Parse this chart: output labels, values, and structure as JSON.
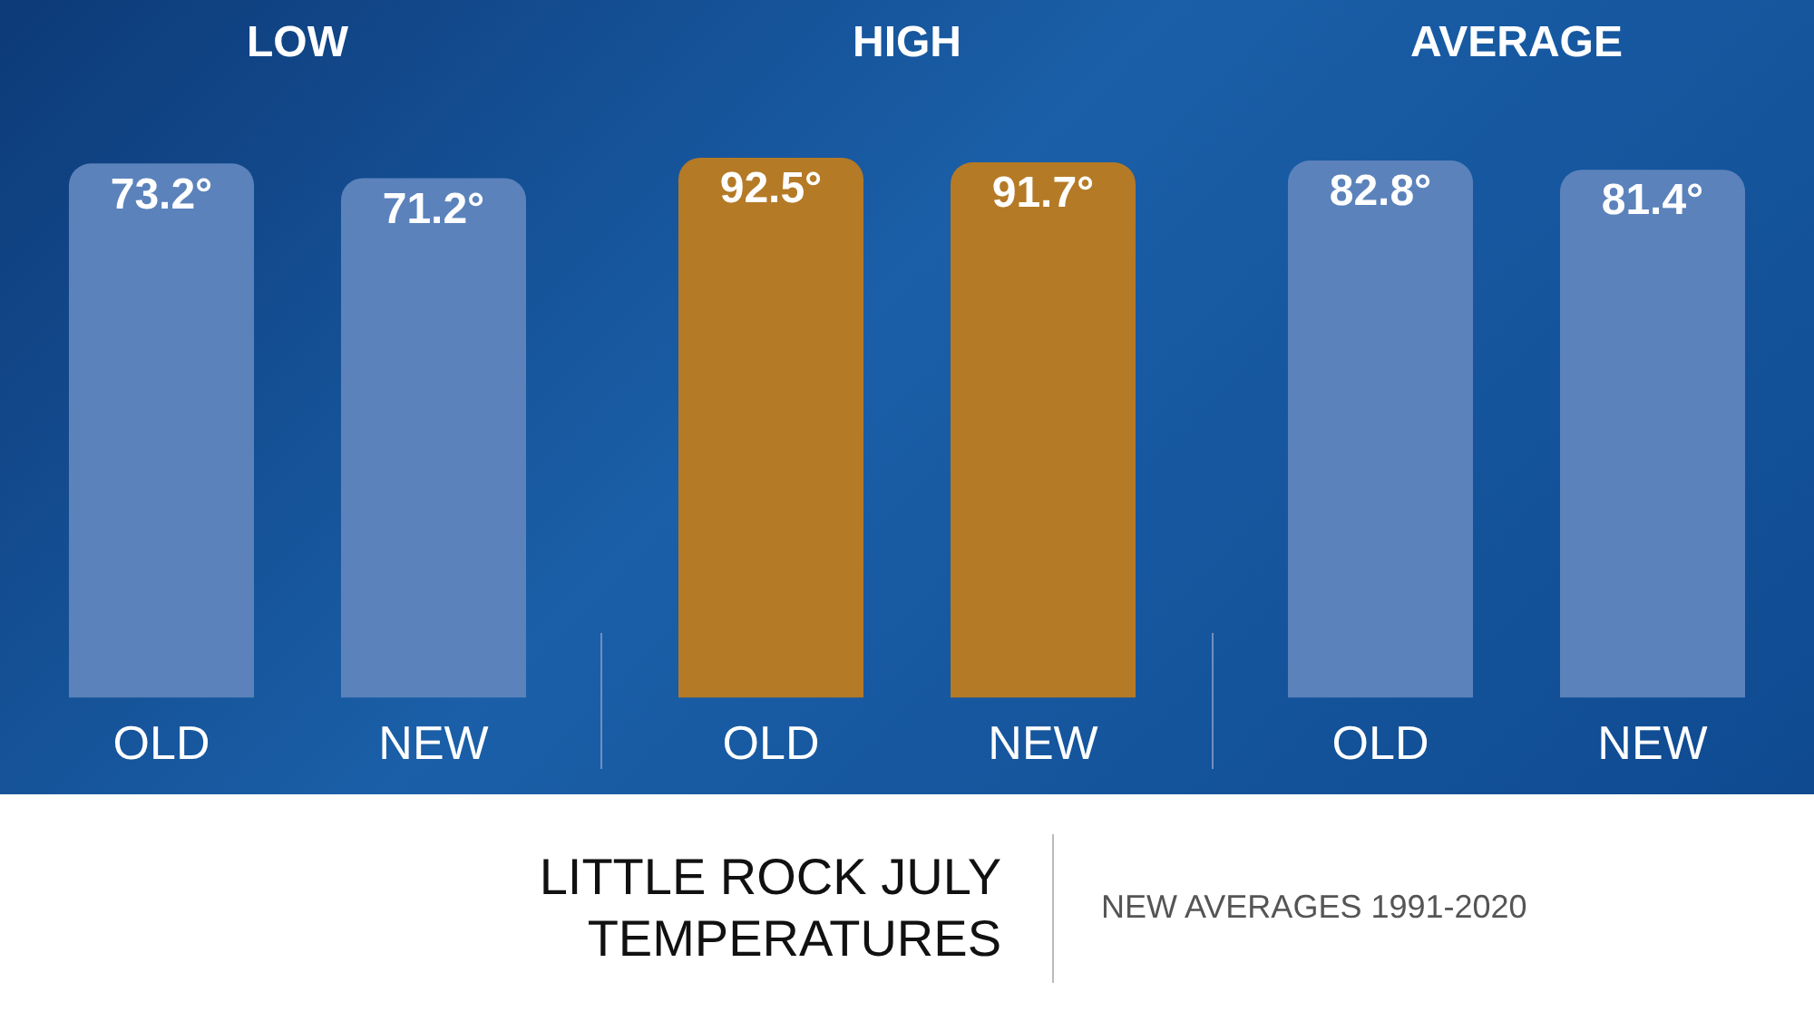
{
  "chart_data": [
    {
      "type": "bar",
      "title": "LOW",
      "categories": [
        "OLD",
        "NEW"
      ],
      "values": [
        73.2,
        71.2
      ],
      "colors": [
        "#5b82bb",
        "#5b82bb"
      ],
      "value_labels": [
        "73.2°",
        "71.2°"
      ],
      "grid": false,
      "legend": false,
      "tick_labels": "x",
      "annotations": [
        "LITTLE ROCK JULY TEMPERATURES",
        "NEW AVERAGES 1991-2020"
      ]
    },
    {
      "type": "bar",
      "title": "HIGH",
      "categories": [
        "OLD",
        "NEW"
      ],
      "values": [
        92.5,
        91.7
      ],
      "colors": [
        "#b47a26",
        "#b47a26"
      ],
      "value_labels": [
        "92.5°",
        "91.7°"
      ],
      "grid": false,
      "legend": false,
      "tick_labels": "x"
    },
    {
      "type": "bar",
      "title": "AVERAGE",
      "categories": [
        "OLD",
        "NEW"
      ],
      "values": [
        82.8,
        81.4
      ],
      "colors": [
        "#5b82bb",
        "#5b82bb"
      ],
      "value_labels": [
        "82.8°",
        "81.4°"
      ],
      "grid": false,
      "legend": false,
      "tick_labels": "x"
    }
  ]
}
